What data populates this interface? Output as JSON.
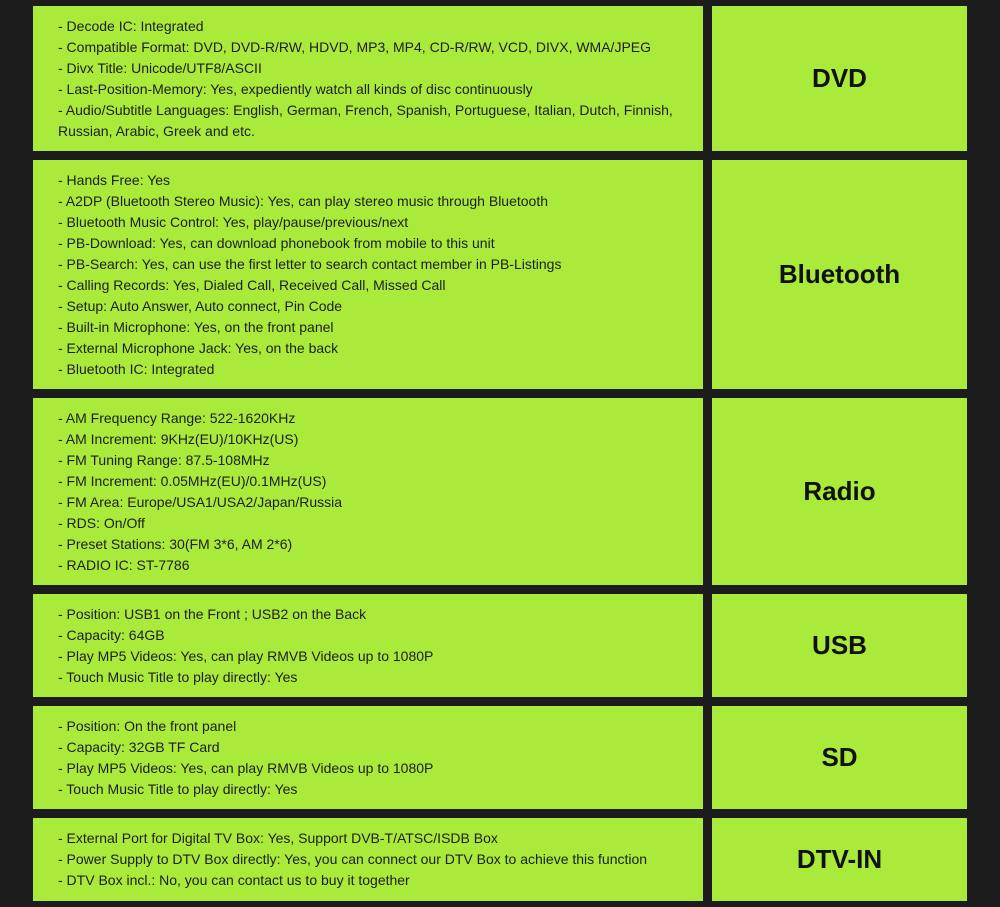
{
  "sections": [
    {
      "title": "DVD",
      "items": [
        "- Decode IC: Integrated",
        "- Compatible Format: DVD, DVD-R/RW, HDVD, MP3, MP4, CD-R/RW, VCD, DIVX, WMA/JPEG",
        "- Divx Title: Unicode/UTF8/ASCII",
        "- Last-Position-Memory: Yes, expediently watch all kinds of disc continuously",
        "- Audio/Subtitle Languages: English, German, French, Spanish, Portuguese, Italian, Dutch, Finnish, Russian, Arabic, Greek and etc."
      ]
    },
    {
      "title": "Bluetooth",
      "items": [
        "- Hands Free: Yes",
        "- A2DP (Bluetooth Stereo Music): Yes, can play stereo music through Bluetooth",
        "- Bluetooth Music Control: Yes, play/pause/previous/next",
        "- PB-Download: Yes, can download phonebook from mobile to this unit",
        "- PB-Search: Yes, can use the first letter to search contact member in PB-Listings",
        "- Calling Records: Yes, Dialed Call, Received Call, Missed Call",
        "- Setup: Auto Answer, Auto connect, Pin Code",
        "- Built-in Microphone: Yes, on the front panel",
        "- External Microphone Jack: Yes, on the back",
        "- Bluetooth IC: Integrated"
      ]
    },
    {
      "title": "Radio",
      "items": [
        "- AM Frequency Range: 522-1620KHz",
        "- AM Increment: 9KHz(EU)/10KHz(US)",
        "- FM Tuning Range: 87.5-108MHz",
        "- FM Increment: 0.05MHz(EU)/0.1MHz(US)",
        "- FM Area: Europe/USA1/USA2/Japan/Russia",
        "- RDS: On/Off",
        "- Preset Stations: 30(FM 3*6, AM 2*6)",
        "- RADIO IC: ST-7786"
      ]
    },
    {
      "title": "USB",
      "items": [
        "- Position: USB1 on the Front ; USB2 on the Back",
        "- Capacity: 64GB",
        "- Play MP5 Videos: Yes, can play RMVB Videos up to 1080P",
        "- Touch Music Title to play directly: Yes"
      ]
    },
    {
      "title": "SD",
      "items": [
        "- Position: On the front panel",
        "- Capacity: 32GB TF Card",
        "- Play MP5 Videos: Yes, can play RMVB Videos up to 1080P",
        "- Touch Music Title to play directly: Yes"
      ]
    },
    {
      "title": "DTV-IN",
      "items": [
        "- External Port for Digital TV Box: Yes, Support DVB-T/ATSC/ISDB Box",
        "- Power Supply to DTV Box directly: Yes, you can connect our DTV Box to achieve this function",
        "- DTV Box incl.: No, you can contact us to buy it together"
      ]
    }
  ]
}
